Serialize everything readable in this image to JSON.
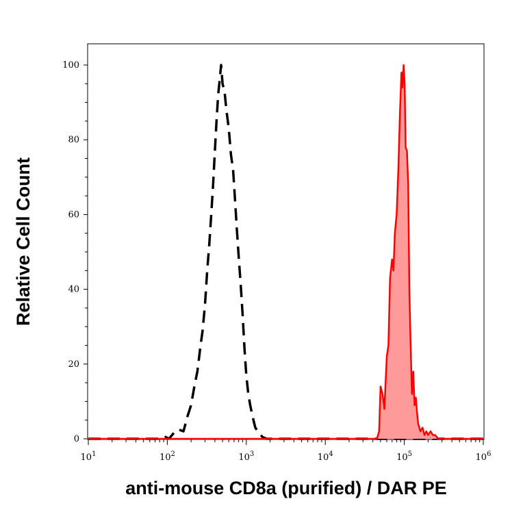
{
  "chart_data": {
    "type": "area",
    "title": "",
    "xlabel": "anti-mouse CD8a (purified) / DAR PE",
    "ylabel": "Relative Cell Count",
    "x_scale": "log",
    "xlim": [
      10,
      1000000
    ],
    "ylim": [
      0,
      100
    ],
    "x_ticks": [
      {
        "value": 10,
        "base": "10",
        "exp": "1"
      },
      {
        "value": 100,
        "base": "10",
        "exp": "2"
      },
      {
        "value": 1000,
        "base": "10",
        "exp": "3"
      },
      {
        "value": 10000,
        "base": "10",
        "exp": "4"
      },
      {
        "value": 100000,
        "base": "10",
        "exp": "5"
      },
      {
        "value": 1000000,
        "base": "10",
        "exp": "6"
      }
    ],
    "y_ticks": [
      {
        "value": 0,
        "label": "0"
      },
      {
        "value": 20,
        "label": "20"
      },
      {
        "value": 40,
        "label": "40"
      },
      {
        "value": 60,
        "label": "60"
      },
      {
        "value": 80,
        "label": "80"
      },
      {
        "value": 100,
        "label": "100"
      }
    ],
    "grid": false,
    "series": [
      {
        "style": "dashed",
        "color": "#000000",
        "fill": "none",
        "x": [
          10,
          80,
          95,
          105,
          115,
          125,
          140,
          160,
          180,
          200,
          220,
          240,
          260,
          280,
          300,
          320,
          340,
          360,
          380,
          400,
          420,
          440,
          460,
          480,
          500,
          530,
          560,
          600,
          640,
          680,
          720,
          760,
          800,
          850,
          900,
          950,
          1000,
          1060,
          1120,
          1200,
          1300,
          1450,
          1600,
          1800,
          2500,
          1000000
        ],
        "y": [
          0,
          0,
          0.5,
          0,
          1,
          2,
          2.5,
          2,
          6,
          9,
          14,
          18,
          24,
          29,
          36,
          45,
          52,
          60,
          68,
          77,
          85,
          92,
          96,
          100,
          95,
          93,
          88,
          83,
          76,
          72,
          64,
          56,
          49,
          41,
          33,
          24,
          17,
          12,
          9,
          6,
          3,
          1.5,
          0.5,
          0,
          0,
          0
        ]
      },
      {
        "style": "solid",
        "color": "#ff0000",
        "fill": "#ff9a9a",
        "x": [
          10,
          45000,
          48000,
          50000,
          53000,
          56000,
          60000,
          63000,
          66000,
          70000,
          73000,
          76000,
          80000,
          84000,
          88000,
          92000,
          95000,
          98000,
          101000,
          104000,
          108000,
          112000,
          116000,
          120000,
          125000,
          130000,
          135000,
          140000,
          145000,
          150000,
          160000,
          170000,
          180000,
          190000,
          200000,
          215000,
          230000,
          245000,
          270000,
          1000000
        ],
        "y": [
          0,
          0,
          2,
          14,
          12,
          8,
          22,
          25,
          43,
          48,
          45,
          55,
          60,
          72,
          87,
          98,
          94,
          100,
          95,
          78,
          77,
          68,
          40,
          26,
          12,
          18,
          9,
          11,
          7,
          4,
          2,
          3,
          1,
          2,
          1,
          2,
          1,
          1,
          0,
          0
        ]
      }
    ]
  }
}
